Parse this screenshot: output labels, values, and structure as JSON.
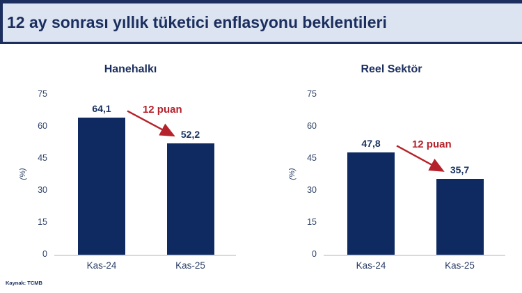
{
  "page": {
    "title": "12 ay sonrası yıllık tüketici enflasyonu beklentileri",
    "source": "Kaynak: TCMB"
  },
  "colors": {
    "header_bg": "#dce4f1",
    "navy": "#1b2e5e",
    "bar": "#0e2a60",
    "accent_red": "#b5222b",
    "tick": "#2f4369",
    "axis_line": "#d9d9d9"
  },
  "chart_data": [
    {
      "type": "bar",
      "title": "Hanehalkı",
      "categories": [
        "Kas-24",
        "Kas-25"
      ],
      "values": [
        64.1,
        52.2
      ],
      "value_labels": [
        "64,1",
        "52,2"
      ],
      "annotation": {
        "text": "12 puan",
        "delta": -12
      },
      "xlabel": "",
      "ylabel": "(%)",
      "ylim": [
        0,
        75
      ],
      "yticks": [
        0,
        15,
        30,
        45,
        60,
        75
      ],
      "grid": false,
      "legend": false
    },
    {
      "type": "bar",
      "title": "Reel Sektör",
      "categories": [
        "Kas-24",
        "Kas-25"
      ],
      "values": [
        47.8,
        35.7
      ],
      "value_labels": [
        "47,8",
        "35,7"
      ],
      "annotation": {
        "text": "12 puan",
        "delta": -12
      },
      "xlabel": "",
      "ylabel": "(%)",
      "ylim": [
        0,
        75
      ],
      "yticks": [
        0,
        15,
        30,
        45,
        60,
        75
      ],
      "grid": false,
      "legend": false
    }
  ]
}
